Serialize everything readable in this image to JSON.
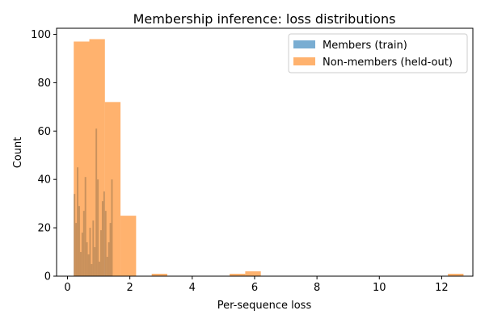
{
  "chart_data": {
    "type": "bar",
    "title": "Membership inference: loss distributions",
    "xlabel": "Per-sequence loss",
    "ylabel": "Count",
    "xlim": [
      -0.35,
      13.0
    ],
    "ylim": [
      0,
      102.5
    ],
    "xticks": [
      0,
      2,
      4,
      6,
      8,
      10,
      12
    ],
    "yticks": [
      0,
      20,
      40,
      60,
      80,
      100
    ],
    "legend_position": "top-right",
    "series": [
      {
        "name": "Members (train)",
        "color": "#1f77b4",
        "bin_width": 0.05,
        "bins": [
          {
            "x0": 0.2,
            "count": 34
          },
          {
            "x0": 0.25,
            "count": 22
          },
          {
            "x0": 0.3,
            "count": 45
          },
          {
            "x0": 0.35,
            "count": 29
          },
          {
            "x0": 0.4,
            "count": 10
          },
          {
            "x0": 0.45,
            "count": 18
          },
          {
            "x0": 0.5,
            "count": 27
          },
          {
            "x0": 0.55,
            "count": 41
          },
          {
            "x0": 0.6,
            "count": 14
          },
          {
            "x0": 0.65,
            "count": 9
          },
          {
            "x0": 0.7,
            "count": 20
          },
          {
            "x0": 0.75,
            "count": 5
          },
          {
            "x0": 0.8,
            "count": 23
          },
          {
            "x0": 0.85,
            "count": 12
          },
          {
            "x0": 0.9,
            "count": 61
          },
          {
            "x0": 0.95,
            "count": 40
          },
          {
            "x0": 1.0,
            "count": 6
          },
          {
            "x0": 1.05,
            "count": 19
          },
          {
            "x0": 1.1,
            "count": 31
          },
          {
            "x0": 1.15,
            "count": 35
          },
          {
            "x0": 1.2,
            "count": 27
          },
          {
            "x0": 1.25,
            "count": 8
          },
          {
            "x0": 1.3,
            "count": 14
          },
          {
            "x0": 1.35,
            "count": 22
          },
          {
            "x0": 1.4,
            "count": 40
          }
        ]
      },
      {
        "name": "Non-members (held-out)",
        "color": "#ff7f0e",
        "bin_width": 0.5,
        "bins": [
          {
            "x0": 0.2,
            "count": 97
          },
          {
            "x0": 0.7,
            "count": 98
          },
          {
            "x0": 1.2,
            "count": 72
          },
          {
            "x0": 1.7,
            "count": 25
          },
          {
            "x0": 2.2,
            "count": 0
          },
          {
            "x0": 2.7,
            "count": 1
          },
          {
            "x0": 5.2,
            "count": 1
          },
          {
            "x0": 5.7,
            "count": 2
          },
          {
            "x0": 12.2,
            "count": 1
          }
        ],
        "notes": "low bins drawn over the members series"
      }
    ]
  }
}
